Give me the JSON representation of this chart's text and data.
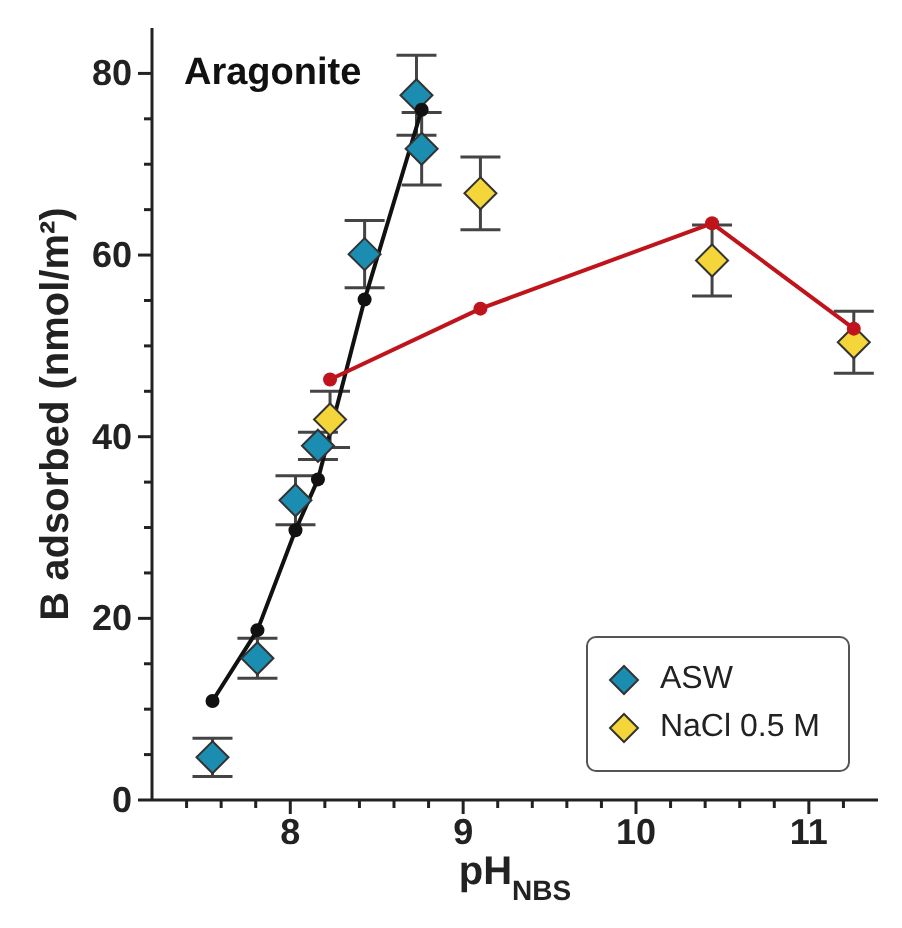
{
  "chart_data": {
    "type": "scatter",
    "xlabel": "pH$_{NBS}$",
    "ylabel": "B adsorbed (nmol/m²)",
    "annotations": [
      "Aragonite"
    ],
    "xlim": [
      7.2,
      11.4
    ],
    "ylim": [
      0,
      85
    ],
    "xticks": [
      {
        "value": 7.4,
        "label": null
      },
      {
        "value": 7.6,
        "label": null
      },
      {
        "value": 7.8,
        "label": null
      },
      8,
      {
        "value": 8.2,
        "label": null
      },
      {
        "value": 8.4,
        "label": null
      },
      {
        "value": 8.6,
        "label": null
      },
      {
        "value": 8.8,
        "label": null
      },
      9,
      {
        "value": 9.2,
        "label": null
      },
      {
        "value": 9.4,
        "label": null
      },
      {
        "value": 9.6,
        "label": null
      },
      {
        "value": 9.8,
        "label": null
      },
      10,
      {
        "value": 10.2,
        "label": null
      },
      {
        "value": 10.4,
        "label": null
      },
      {
        "value": 10.6,
        "label": null
      },
      {
        "value": 10.8,
        "label": null
      },
      11,
      {
        "value": 11.2,
        "label": null
      }
    ],
    "yticks": [
      0,
      {
        "value": 5,
        "label": null
      },
      {
        "value": 10,
        "label": null
      },
      {
        "value": 15,
        "label": null
      },
      20,
      {
        "value": 25,
        "label": null
      },
      {
        "value": 30,
        "label": null
      },
      {
        "value": 35,
        "label": null
      },
      40,
      {
        "value": 45,
        "label": null
      },
      {
        "value": 50,
        "label": null
      },
      {
        "value": 55,
        "label": null
      },
      60,
      {
        "value": 65,
        "label": null
      },
      {
        "value": 70,
        "label": null
      },
      {
        "value": 75,
        "label": null
      },
      80
    ],
    "legend": "bottom right",
    "series": [
      {
        "type": "line",
        "color": "#111111",
        "marker": "circle",
        "x": [
          7.55,
          7.81,
          8.03,
          8.16,
          8.43,
          8.76
        ],
        "values": [
          10.9,
          18.7,
          29.7,
          35.3,
          55.1,
          76.0
        ]
      },
      {
        "type": "line",
        "color": "#c0141c",
        "marker": "circle",
        "x": [
          8.23,
          9.1,
          10.44,
          11.26
        ],
        "values": [
          46.3,
          54.1,
          63.5,
          51.9
        ]
      },
      {
        "name": "ASW",
        "color": "#1b8db0",
        "marker": "diamond",
        "x": [
          7.55,
          7.81,
          8.03,
          8.16,
          8.43,
          8.73,
          8.76
        ],
        "values": [
          4.7,
          15.6,
          33,
          39,
          60.1,
          77.6,
          71.7
        ],
        "errors": [
          2.1,
          2.2,
          2.7,
          1.5,
          3.7,
          4.4,
          4
        ]
      },
      {
        "name": "NaCl 0.5 M",
        "color": "#f5d63a",
        "marker": "diamond",
        "x": [
          8.23,
          9.1,
          10.44,
          11.26
        ],
        "values": [
          41.9,
          66.8,
          59.4,
          50.4
        ],
        "errors": [
          3.1,
          4,
          3.9,
          3.4
        ]
      }
    ]
  }
}
